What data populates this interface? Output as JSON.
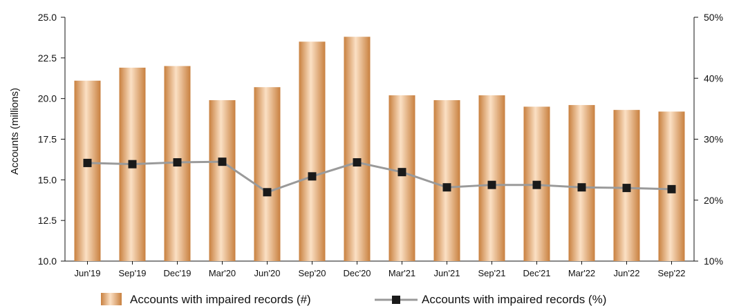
{
  "chart_data": {
    "type": "bar",
    "categories": [
      "Jun'19",
      "Sep'19",
      "Dec'19",
      "Mar'20",
      "Jun'20",
      "Sep'20",
      "Dec'20",
      "Mar'21",
      "Jun'21",
      "Sep'21",
      "Dec'21",
      "Mar'22",
      "Jun'22",
      "Sep'22"
    ],
    "series": [
      {
        "name": "Accounts with impaired records (#)",
        "type": "bar",
        "axis": "left",
        "values": [
          21.1,
          21.9,
          22.0,
          19.9,
          20.7,
          23.5,
          23.8,
          20.2,
          19.9,
          20.2,
          19.5,
          19.6,
          19.3,
          19.2
        ]
      },
      {
        "name": "Accounts with impaired records (%)",
        "type": "line",
        "axis": "right",
        "values": [
          26.1,
          25.9,
          26.2,
          26.3,
          21.3,
          23.9,
          26.2,
          24.6,
          22.1,
          22.5,
          22.5,
          22.1,
          22.0,
          21.8
        ]
      }
    ],
    "ylabel": "Accounts (millions)",
    "ylim": [
      10.0,
      25.0
    ],
    "y_ticks": [
      "10.0",
      "12.5",
      "15.0",
      "17.5",
      "20.0",
      "22.5",
      "25.0"
    ],
    "y2lim": [
      10,
      50
    ],
    "y2_ticks": [
      "10%",
      "20%",
      "30%",
      "40%",
      "50%"
    ],
    "grid": false,
    "legend_position": "bottom",
    "colors": {
      "bar_dark": "#C8803F",
      "bar_light": "#FBE0C4",
      "line": "#9A9A9A",
      "marker": "#1A1A1A"
    }
  }
}
